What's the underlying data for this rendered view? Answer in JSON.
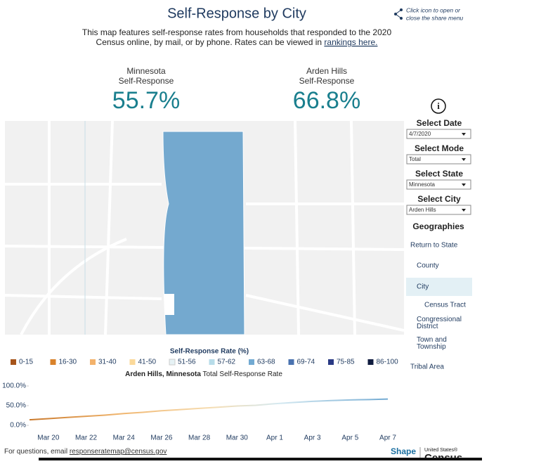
{
  "header": {
    "title": "Self-Response by City",
    "share_hint": [
      "Click icon to open or",
      "close the share menu"
    ],
    "description": [
      "This map features self-response rates from households that responded to the 2020",
      "Census online, by mail, or by phone. Rates can be viewed in "
    ],
    "description_link": "rankings here."
  },
  "kpis": [
    {
      "place": "Minnesota",
      "label": "Self-Response",
      "value": "55.7%"
    },
    {
      "place": "Arden Hills",
      "label": "Self-Response",
      "value": "66.8%"
    }
  ],
  "controls": [
    {
      "label": "Select Date",
      "value": "4/7/2020"
    },
    {
      "label": "Select Mode",
      "value": "Total"
    },
    {
      "label": "Select State",
      "value": "Minnesota"
    },
    {
      "label": "Select City",
      "value": "Arden Hills"
    }
  ],
  "geographies": {
    "title": "Geographies",
    "items": [
      "Return to State",
      "County",
      "City",
      "Census Tract",
      "Congressional District",
      "Town and Township",
      "Tribal Area"
    ],
    "selected": "City"
  },
  "legend": {
    "title": "Self-Response Rate (%)",
    "bins": [
      "0-15",
      "16-30",
      "31-40",
      "41-50",
      "51-56",
      "57-62",
      "63-68",
      "69-74",
      "75-85",
      "86-100"
    ],
    "colors": [
      "#a6541a",
      "#d9822b",
      "#f3b26b",
      "#fbd99a",
      "#e6f2f5",
      "#b7dce9",
      "#72aad2",
      "#4a73b0",
      "#2a3a84",
      "#101c3f"
    ]
  },
  "chart_data": {
    "type": "line",
    "title_place": "Arden Hills, Minnesota",
    "title": "Total Self-Response Rate",
    "categories": [
      null,
      "Mar 20",
      null,
      "Mar 22",
      null,
      "Mar 24",
      null,
      "Mar 26",
      null,
      "Mar 28",
      null,
      "Mar 30",
      null,
      "Apr 1",
      null,
      "Apr 3",
      null,
      "Apr 5",
      null,
      "Apr 7"
    ],
    "values": [
      14,
      17,
      20,
      23,
      26,
      30,
      33,
      37,
      40,
      43,
      46,
      49,
      51,
      55,
      58,
      61,
      63,
      64.5,
      65.5,
      66.8
    ],
    "ylim": [
      0,
      100
    ],
    "yticks": [
      {
        "value": 0,
        "label": "0.0%"
      },
      {
        "value": 50,
        "label": "50.0%"
      },
      {
        "value": 100,
        "label": "100.0%"
      }
    ]
  },
  "footer": {
    "text": "For questions, email ",
    "email": "responseratemap@census.gov",
    "logo_left": "Shape",
    "logo_right_top": "United States®",
    "logo_right": "Census"
  }
}
